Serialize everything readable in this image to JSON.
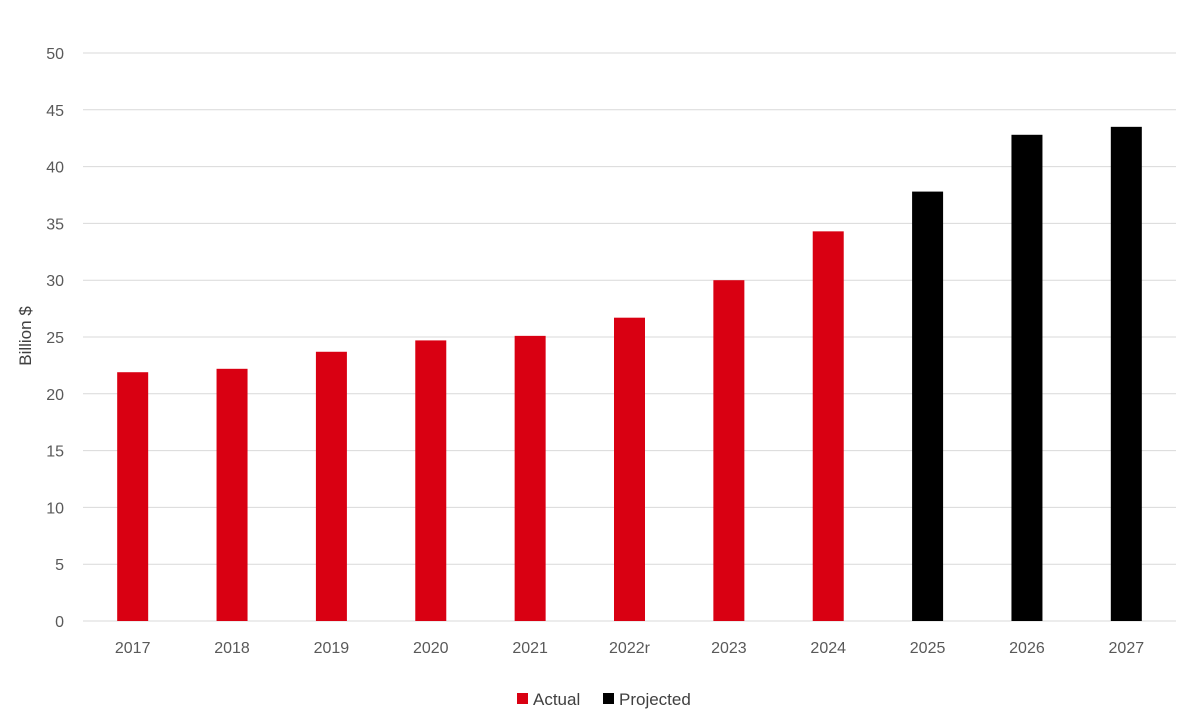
{
  "chart_data": {
    "type": "bar",
    "categories": [
      "2017",
      "2018",
      "2019",
      "2020",
      "2021",
      "2022r",
      "2023",
      "2024",
      "2025",
      "2026",
      "2027"
    ],
    "series": [
      {
        "name": "Actual",
        "color": "#d90012",
        "values": [
          21.9,
          22.2,
          23.7,
          24.7,
          25.1,
          26.7,
          30.0,
          34.3,
          null,
          null,
          null
        ]
      },
      {
        "name": "Projected",
        "color": "#000000",
        "values": [
          null,
          null,
          null,
          null,
          null,
          null,
          null,
          null,
          37.8,
          42.8,
          43.5
        ]
      }
    ],
    "title": "",
    "xlabel": "",
    "ylabel": "Billion $",
    "ylim": [
      0,
      50
    ],
    "yticks": [
      "0",
      "5",
      "10",
      "15",
      "20",
      "25",
      "30",
      "35",
      "40",
      "45",
      "50"
    ],
    "grid": true,
    "legend_position": "bottom-center"
  }
}
